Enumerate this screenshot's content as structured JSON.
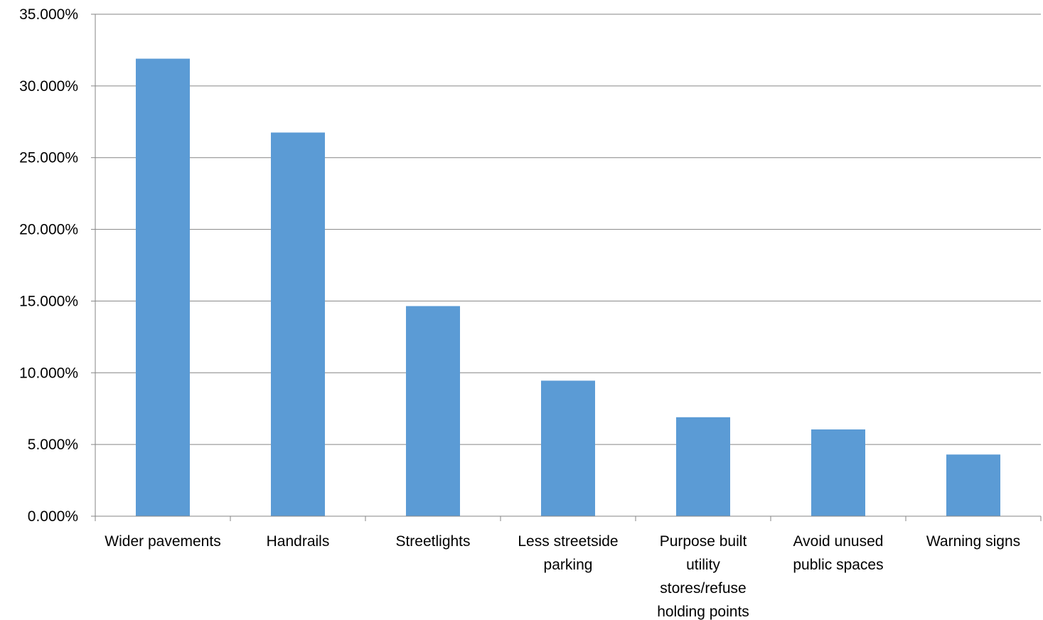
{
  "chart_data": {
    "type": "bar",
    "title": "",
    "xlabel": "",
    "ylabel": "",
    "categories": [
      "Wider pavements",
      "Handrails",
      "Streetlights",
      "Less streetside parking",
      "Purpose built utility stores/refuse holding points",
      "Avoid unused public spaces",
      "Warning signs"
    ],
    "values": [
      31.9,
      26.75,
      14.65,
      9.45,
      6.9,
      6.05,
      4.3
    ],
    "ylim": [
      0,
      35
    ],
    "yticks": [
      "0.000%",
      "5.000%",
      "10.000%",
      "15.000%",
      "20.000%",
      "25.000%",
      "30.000%",
      "35.000%"
    ],
    "grid": true,
    "legend": "none",
    "bar_color": "#5b9bd5"
  }
}
